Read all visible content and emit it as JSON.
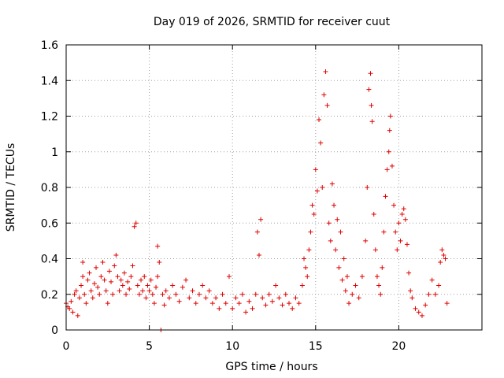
{
  "chart_data": {
    "type": "scatter",
    "title": "Day 019 of 2026, SRMTID for receiver cuut",
    "xlabel": "GPS time / hours",
    "ylabel": "SRMTID / TECUs",
    "xlim": [
      0,
      25
    ],
    "ylim": [
      0,
      1.6
    ],
    "xticks": [
      0,
      5,
      10,
      15,
      20
    ],
    "xtick_labels": [
      "0",
      "5",
      "10",
      "15",
      "20"
    ],
    "yticks": [
      0,
      0.2,
      0.4,
      0.6,
      0.8,
      1.0,
      1.2,
      1.4,
      1.6
    ],
    "ytick_labels": [
      "0",
      "0.2",
      "0.4",
      "0.6",
      "0.8",
      "1",
      "1.2",
      "1.4",
      "1.6"
    ],
    "grid": true,
    "marker": "plus",
    "color": "#e00000",
    "series": [
      {
        "name": "SRMTID",
        "points": [
          [
            0.0,
            0.15
          ],
          [
            0.1,
            0.13
          ],
          [
            0.2,
            0.12
          ],
          [
            0.3,
            0.16
          ],
          [
            0.4,
            0.1
          ],
          [
            0.5,
            0.2
          ],
          [
            0.6,
            0.22
          ],
          [
            0.7,
            0.08
          ],
          [
            0.8,
            0.18
          ],
          [
            0.9,
            0.25
          ],
          [
            1.0,
            0.3
          ],
          [
            1.0,
            0.38
          ],
          [
            1.1,
            0.2
          ],
          [
            1.2,
            0.15
          ],
          [
            1.3,
            0.28
          ],
          [
            1.4,
            0.32
          ],
          [
            1.5,
            0.22
          ],
          [
            1.6,
            0.18
          ],
          [
            1.7,
            0.26
          ],
          [
            1.8,
            0.35
          ],
          [
            1.9,
            0.24
          ],
          [
            2.0,
            0.2
          ],
          [
            2.1,
            0.3
          ],
          [
            2.2,
            0.38
          ],
          [
            2.3,
            0.28
          ],
          [
            2.4,
            0.22
          ],
          [
            2.5,
            0.15
          ],
          [
            2.6,
            0.33
          ],
          [
            2.7,
            0.27
          ],
          [
            2.8,
            0.2
          ],
          [
            2.9,
            0.36
          ],
          [
            3.0,
            0.42
          ],
          [
            3.1,
            0.3
          ],
          [
            3.2,
            0.22
          ],
          [
            3.3,
            0.28
          ],
          [
            3.4,
            0.25
          ],
          [
            3.5,
            0.32
          ],
          [
            3.6,
            0.2
          ],
          [
            3.7,
            0.27
          ],
          [
            3.8,
            0.23
          ],
          [
            3.9,
            0.3
          ],
          [
            4.0,
            0.36
          ],
          [
            4.1,
            0.58
          ],
          [
            4.2,
            0.6
          ],
          [
            4.3,
            0.25
          ],
          [
            4.4,
            0.2
          ],
          [
            4.5,
            0.28
          ],
          [
            4.6,
            0.22
          ],
          [
            4.7,
            0.3
          ],
          [
            4.8,
            0.18
          ],
          [
            4.9,
            0.25
          ],
          [
            5.0,
            0.22
          ],
          [
            5.1,
            0.28
          ],
          [
            5.2,
            0.2
          ],
          [
            5.3,
            0.15
          ],
          [
            5.4,
            0.24
          ],
          [
            5.5,
            0.3
          ],
          [
            5.5,
            0.47
          ],
          [
            5.6,
            0.38
          ],
          [
            5.7,
            0.0
          ],
          [
            5.8,
            0.2
          ],
          [
            5.9,
            0.14
          ],
          [
            6.0,
            0.22
          ],
          [
            6.2,
            0.18
          ],
          [
            6.4,
            0.25
          ],
          [
            6.6,
            0.2
          ],
          [
            6.8,
            0.16
          ],
          [
            7.0,
            0.24
          ],
          [
            7.2,
            0.28
          ],
          [
            7.4,
            0.18
          ],
          [
            7.6,
            0.22
          ],
          [
            7.8,
            0.15
          ],
          [
            8.0,
            0.2
          ],
          [
            8.2,
            0.25
          ],
          [
            8.4,
            0.18
          ],
          [
            8.6,
            0.22
          ],
          [
            8.8,
            0.15
          ],
          [
            9.0,
            0.18
          ],
          [
            9.2,
            0.12
          ],
          [
            9.4,
            0.2
          ],
          [
            9.6,
            0.15
          ],
          [
            9.8,
            0.3
          ],
          [
            10.0,
            0.12
          ],
          [
            10.2,
            0.18
          ],
          [
            10.4,
            0.15
          ],
          [
            10.6,
            0.2
          ],
          [
            10.8,
            0.1
          ],
          [
            11.0,
            0.16
          ],
          [
            11.2,
            0.12
          ],
          [
            11.4,
            0.2
          ],
          [
            11.5,
            0.55
          ],
          [
            11.6,
            0.42
          ],
          [
            11.7,
            0.62
          ],
          [
            11.8,
            0.18
          ],
          [
            12.0,
            0.14
          ],
          [
            12.2,
            0.2
          ],
          [
            12.4,
            0.16
          ],
          [
            12.6,
            0.25
          ],
          [
            12.8,
            0.18
          ],
          [
            13.0,
            0.14
          ],
          [
            13.2,
            0.2
          ],
          [
            13.4,
            0.15
          ],
          [
            13.6,
            0.12
          ],
          [
            13.8,
            0.18
          ],
          [
            14.0,
            0.15
          ],
          [
            14.2,
            0.25
          ],
          [
            14.3,
            0.4
          ],
          [
            14.4,
            0.35
          ],
          [
            14.5,
            0.3
          ],
          [
            14.6,
            0.45
          ],
          [
            14.7,
            0.55
          ],
          [
            14.8,
            0.7
          ],
          [
            14.9,
            0.65
          ],
          [
            15.0,
            0.9
          ],
          [
            15.1,
            0.78
          ],
          [
            15.2,
            1.18
          ],
          [
            15.3,
            1.05
          ],
          [
            15.4,
            0.8
          ],
          [
            15.5,
            1.32
          ],
          [
            15.6,
            1.45
          ],
          [
            15.7,
            1.26
          ],
          [
            15.8,
            0.6
          ],
          [
            15.9,
            0.5
          ],
          [
            16.0,
            0.82
          ],
          [
            16.1,
            0.7
          ],
          [
            16.2,
            0.45
          ],
          [
            16.3,
            0.62
          ],
          [
            16.4,
            0.35
          ],
          [
            16.5,
            0.55
          ],
          [
            16.6,
            0.28
          ],
          [
            16.7,
            0.4
          ],
          [
            16.8,
            0.22
          ],
          [
            16.9,
            0.3
          ],
          [
            17.0,
            0.15
          ],
          [
            17.2,
            0.2
          ],
          [
            17.4,
            0.25
          ],
          [
            17.6,
            0.18
          ],
          [
            17.8,
            0.3
          ],
          [
            18.0,
            0.5
          ],
          [
            18.1,
            0.8
          ],
          [
            18.2,
            1.35
          ],
          [
            18.3,
            1.44
          ],
          [
            18.35,
            1.26
          ],
          [
            18.4,
            1.17
          ],
          [
            18.5,
            0.65
          ],
          [
            18.6,
            0.45
          ],
          [
            18.7,
            0.3
          ],
          [
            18.8,
            0.25
          ],
          [
            18.9,
            0.2
          ],
          [
            19.0,
            0.35
          ],
          [
            19.1,
            0.55
          ],
          [
            19.2,
            0.75
          ],
          [
            19.3,
            0.9
          ],
          [
            19.4,
            1.0
          ],
          [
            19.45,
            1.12
          ],
          [
            19.5,
            1.2
          ],
          [
            19.6,
            0.92
          ],
          [
            19.7,
            0.7
          ],
          [
            19.8,
            0.55
          ],
          [
            19.9,
            0.45
          ],
          [
            20.0,
            0.6
          ],
          [
            20.1,
            0.5
          ],
          [
            20.2,
            0.65
          ],
          [
            20.3,
            0.68
          ],
          [
            20.4,
            0.62
          ],
          [
            20.5,
            0.48
          ],
          [
            20.6,
            0.32
          ],
          [
            20.7,
            0.22
          ],
          [
            20.8,
            0.18
          ],
          [
            21.0,
            0.12
          ],
          [
            21.2,
            0.1
          ],
          [
            21.4,
            0.08
          ],
          [
            21.6,
            0.14
          ],
          [
            21.8,
            0.2
          ],
          [
            22.0,
            0.28
          ],
          [
            22.2,
            0.2
          ],
          [
            22.4,
            0.25
          ],
          [
            22.5,
            0.38
          ],
          [
            22.6,
            0.45
          ],
          [
            22.7,
            0.42
          ],
          [
            22.8,
            0.4
          ],
          [
            22.9,
            0.15
          ]
        ]
      }
    ]
  }
}
